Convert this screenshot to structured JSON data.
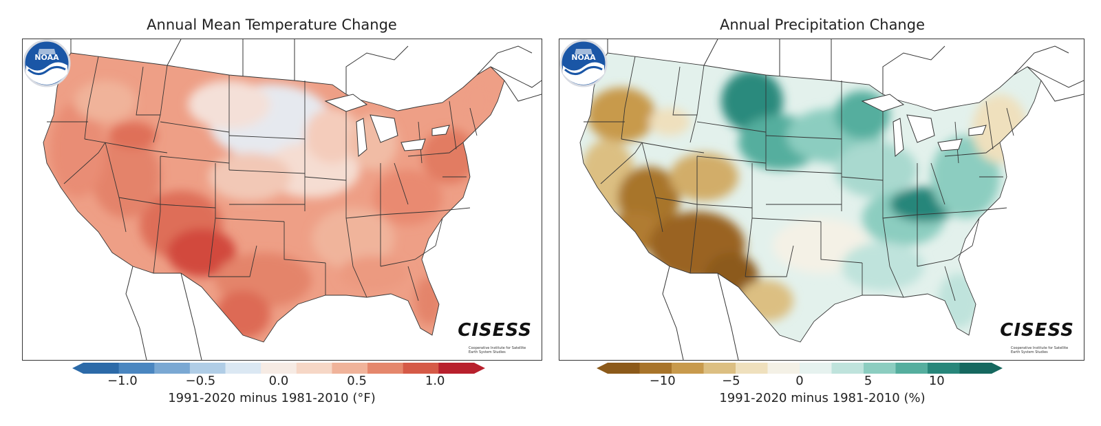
{
  "panels": [
    {
      "title": "Annual Mean Temperature Change",
      "colorbar": {
        "ticks": [
          "−1.0",
          "−0.5",
          "0.0",
          "0.5",
          "1.0"
        ],
        "tick_values": [
          -1.0,
          -0.5,
          0.0,
          0.5,
          1.0
        ],
        "range": [
          -1.25,
          1.25
        ],
        "colors": [
          "#2c6aa8",
          "#4a86c0",
          "#7aa8d3",
          "#b0cde6",
          "#dbe8f3",
          "#f6ebe4",
          "#f6d7c6",
          "#f0b39a",
          "#e5876c",
          "#d55a47",
          "#b8202d"
        ],
        "label": "1991-2020 minus 1981-2010 (°F)"
      },
      "brand": "CISESS",
      "brand_sub": "Cooperative Institute for Satellite Earth System Studies",
      "logo_text": "NOAA"
    },
    {
      "title": "Annual Precipitation Change",
      "colorbar": {
        "ticks": [
          "−10",
          "−5",
          "0",
          "5",
          "10"
        ],
        "tick_values": [
          -10,
          -5,
          0,
          5,
          10
        ],
        "range": [
          -14,
          14
        ],
        "colors": [
          "#8c5a1a",
          "#a8742a",
          "#c89a4c",
          "#dcbf82",
          "#efe0bd",
          "#f4f1e6",
          "#e6f2ef",
          "#bfe3dc",
          "#8ccdc0",
          "#55ae9e",
          "#27867a",
          "#16685f"
        ],
        "label": "1991-2020 minus 1981-2010 (%)"
      },
      "brand": "CISESS",
      "brand_sub": "Cooperative Institute for Satellite Earth System Studies",
      "logo_text": "NOAA"
    }
  ]
}
